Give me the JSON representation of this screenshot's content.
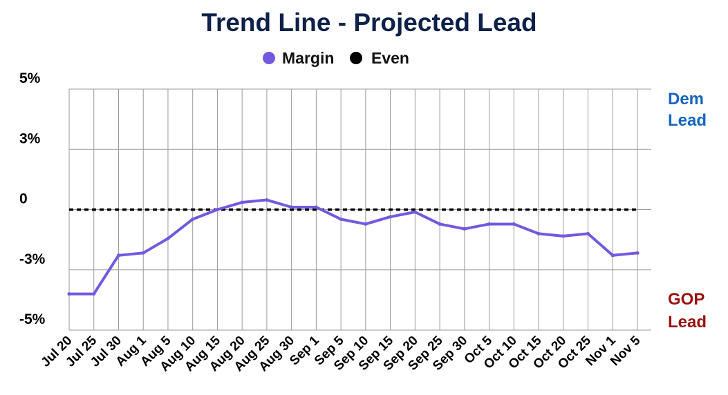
{
  "chart_data": {
    "type": "line",
    "title": "Trend Line - Projected Lead",
    "categories": [
      "Jul 20",
      "Jul 25",
      "Jul 30",
      "Aug 1",
      "Aug 5",
      "Aug 10",
      "Aug 15",
      "Aug 20",
      "Aug 25",
      "Aug 30",
      "Sep 1",
      "Sep 5",
      "Sep 10",
      "Sep 15",
      "Sep 20",
      "Sep 25",
      "Sep 30",
      "Oct 5",
      "Oct 10",
      "Oct 15",
      "Oct 20",
      "Oct 25",
      "Nov 1",
      "Nov 5"
    ],
    "series": [
      {
        "name": "Margin",
        "color": "#7359e0",
        "values": [
          -3.5,
          -3.5,
          -1.9,
          -1.8,
          -1.2,
          -0.4,
          0.0,
          0.3,
          0.4,
          0.1,
          0.1,
          -0.4,
          -0.6,
          -0.3,
          -0.1,
          -0.6,
          -0.8,
          -0.6,
          -0.6,
          -1.0,
          -1.1,
          -1.0,
          -1.9,
          -1.8
        ]
      },
      {
        "name": "Even",
        "color": "#000000",
        "values": [
          0,
          0,
          0,
          0,
          0,
          0,
          0,
          0,
          0,
          0,
          0,
          0,
          0,
          0,
          0,
          0,
          0,
          0,
          0,
          0,
          0,
          0,
          0,
          0
        ],
        "style": "dashed"
      }
    ],
    "y_ticks": [
      {
        "value": 5,
        "label": "5%"
      },
      {
        "value": 2.5,
        "label": "3%"
      },
      {
        "value": 0,
        "label": "0"
      },
      {
        "value": -2.5,
        "label": "-3%"
      },
      {
        "value": -5,
        "label": "-5%"
      }
    ],
    "ylim": [
      -5,
      5
    ],
    "grid": true,
    "legend_position": "top-center",
    "annotations": {
      "dem_label": [
        "Dem",
        "Lead"
      ],
      "gop_label": [
        "GOP",
        "Lead"
      ],
      "dem_color": "#1565c0",
      "gop_color": "#9b1010"
    },
    "title_color": "#0d2149"
  }
}
